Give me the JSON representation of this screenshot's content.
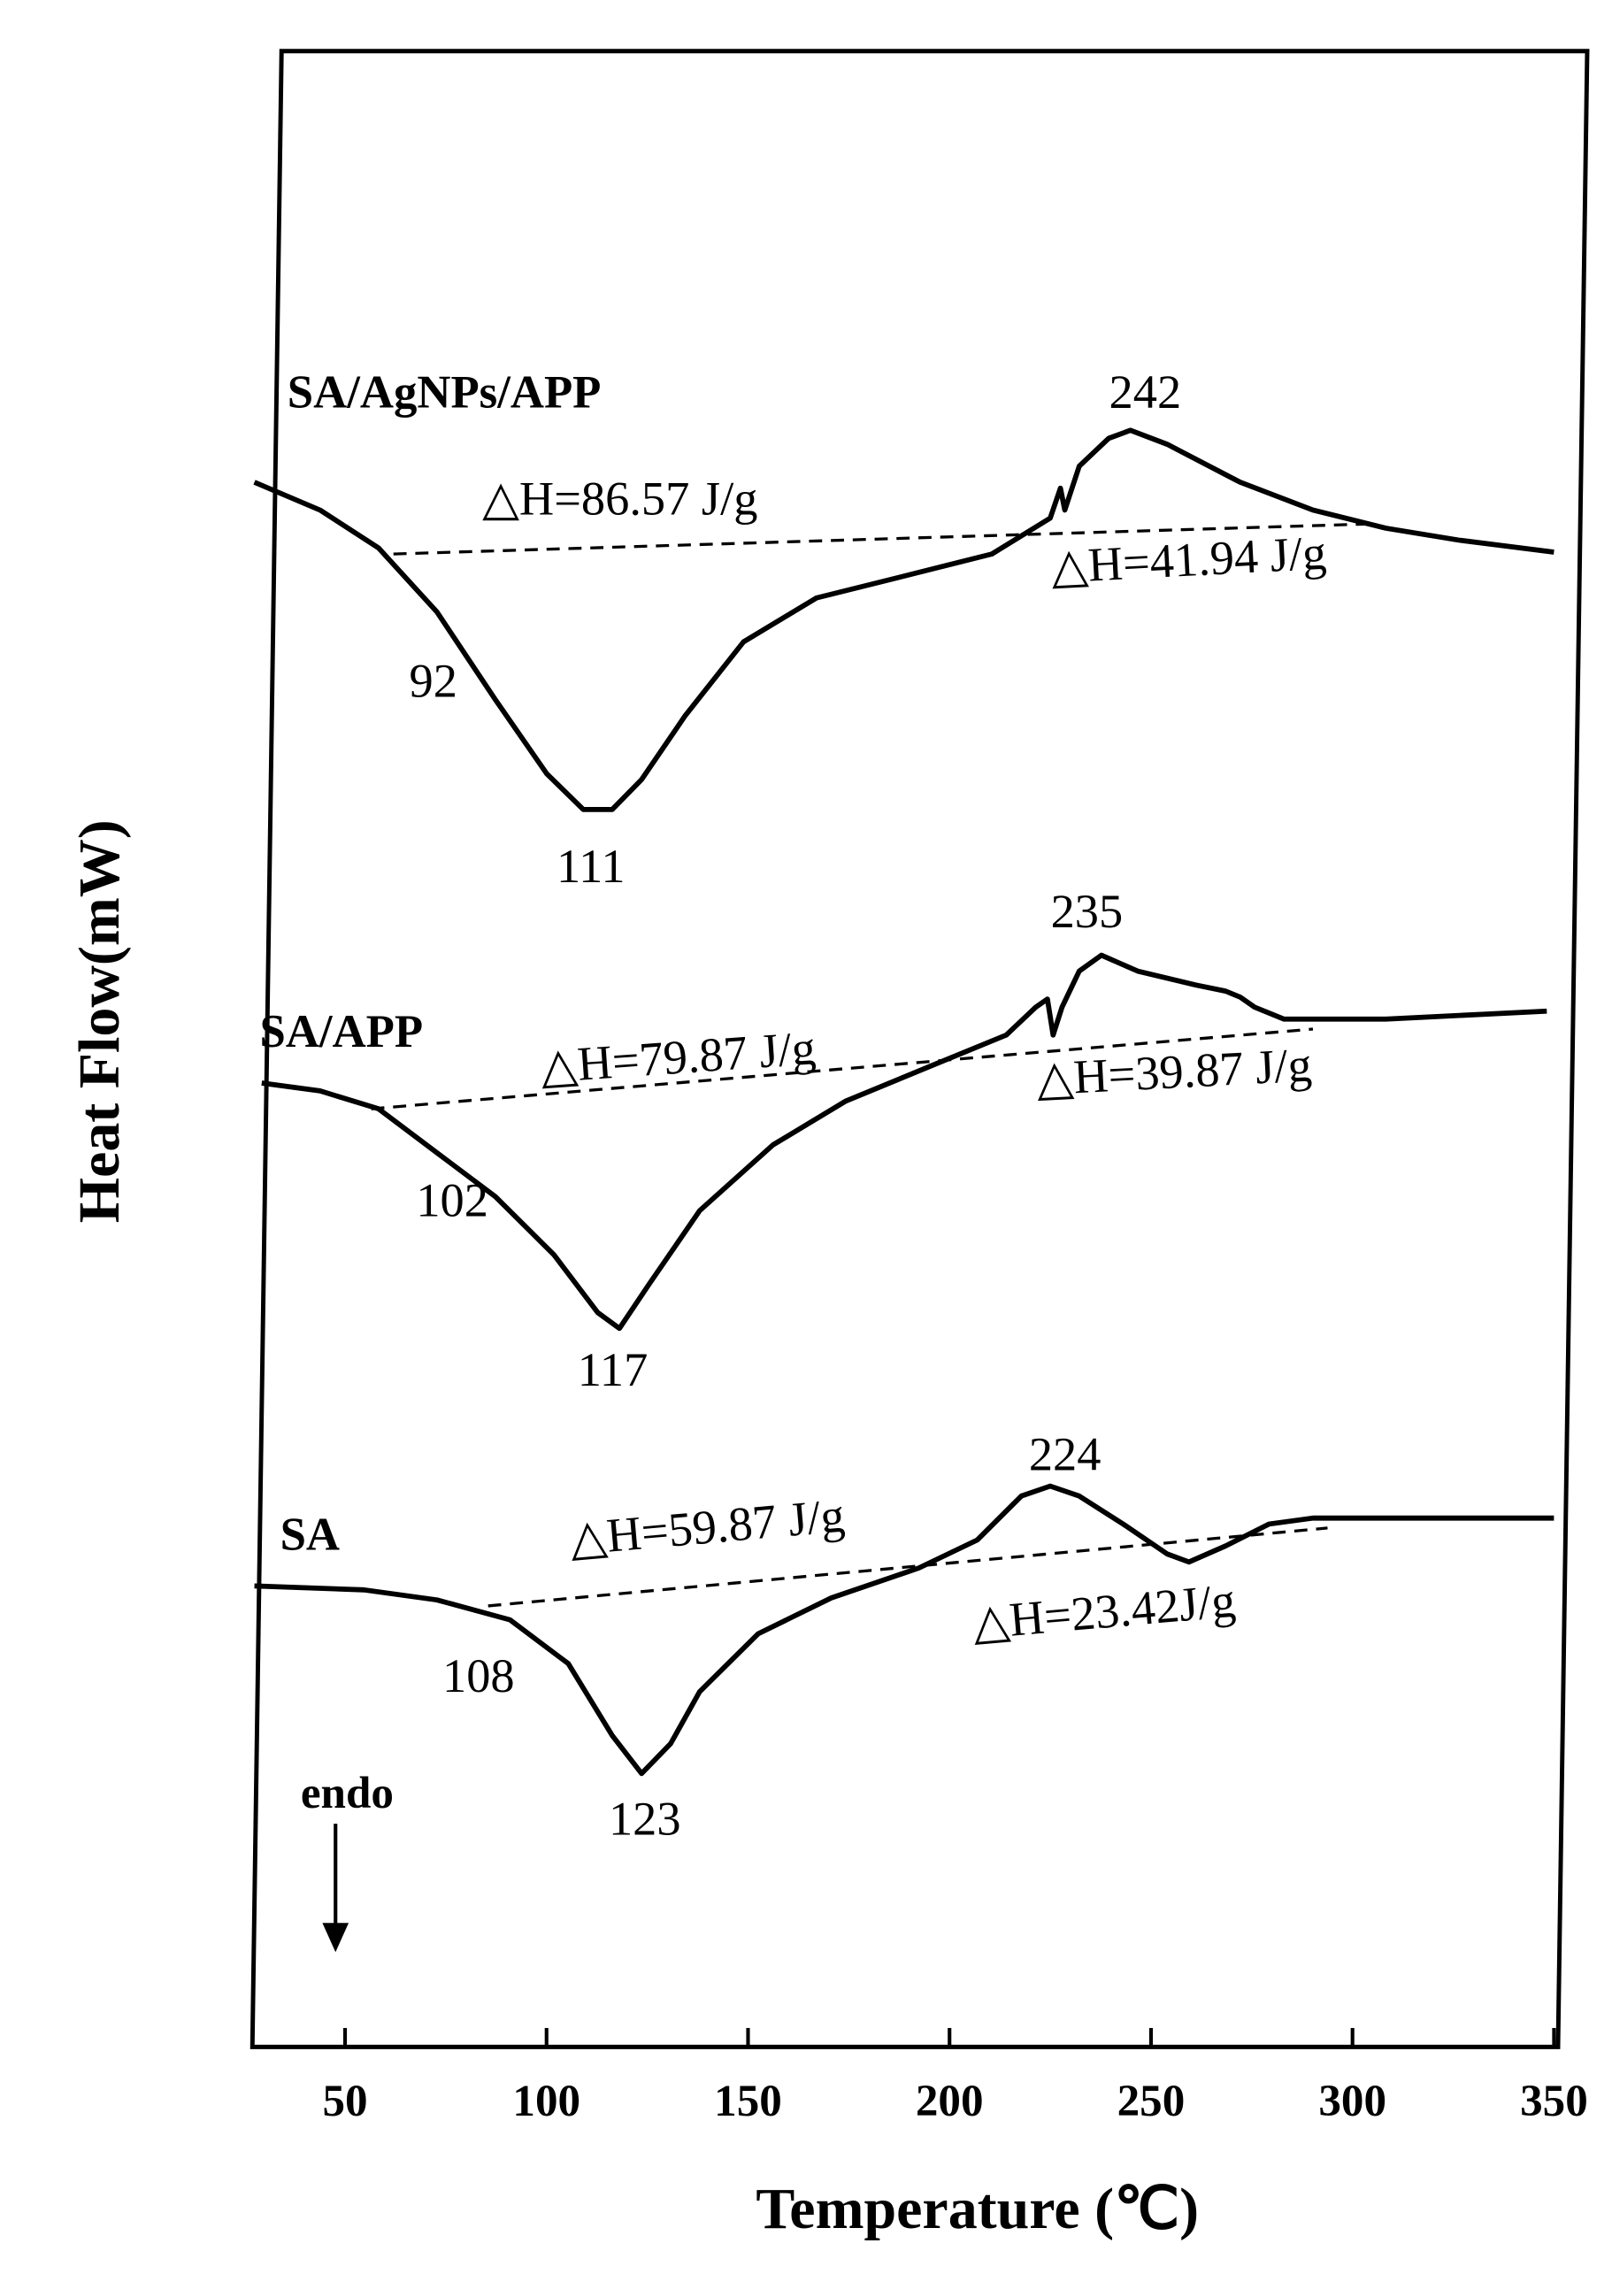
{
  "chart_data": {
    "type": "line",
    "x_label": "Temperature (℃)",
    "y_label": "Heat Flow(mW)",
    "annotation": "endo",
    "xlim": [
      27,
      351
    ],
    "xticks": [
      50,
      100,
      150,
      200,
      250,
      300,
      350
    ],
    "ylim": [
      0,
      100
    ],
    "series": [
      {
        "name": "SA/AgNPs/APP",
        "color": "#000000",
        "x": [
          27.5,
          43.8,
          58.3,
          72.8,
          87.3,
          100.0,
          109.1,
          116.3,
          123.6,
          134.4,
          148.9,
          167.0,
          188.8,
          210.5,
          225.0,
          227.5,
          228.6,
          232.2,
          239.5,
          244.9,
          254.0,
          272.1,
          290.2,
          308.3,
          326.4,
          350.0
        ],
        "values": [
          78.4,
          77.0,
          75.1,
          71.9,
          67.5,
          63.8,
          62.0,
          62.0,
          63.5,
          66.7,
          70.4,
          72.6,
          73.7,
          74.8,
          76.6,
          78.1,
          77.0,
          79.2,
          80.6,
          81.0,
          80.3,
          78.4,
          77.0,
          76.1,
          75.5,
          74.9
        ],
        "baseline": {
          "x": [
            62.0,
            302.9
          ],
          "y": [
            74.8,
            76.3
          ]
        },
        "peak_labels": [
          "92",
          "111",
          "242"
        ],
        "enthalpy_labels": [
          "△H=86.57 J/g",
          "△H=41.94 J/g"
        ]
      },
      {
        "name": "SA/APP",
        "color": "#000000",
        "x": [
          29.3,
          43.8,
          58.3,
          72.8,
          87.3,
          101.8,
          112.7,
          118.1,
          125.4,
          138.0,
          156.2,
          174.3,
          196.0,
          214.1,
          221.4,
          224.3,
          225.7,
          227.9,
          232.2,
          237.7,
          246.7,
          261.2,
          268.5,
          272.1,
          275.7,
          283.0,
          308.3,
          348.2
        ],
        "values": [
          48.3,
          47.9,
          47.0,
          44.8,
          42.6,
          39.7,
          36.8,
          36.0,
          38.2,
          41.9,
          45.2,
          47.4,
          49.2,
          50.7,
          52.1,
          52.5,
          50.7,
          52.1,
          53.9,
          54.7,
          53.9,
          53.2,
          52.9,
          52.6,
          52.1,
          51.5,
          51.5,
          51.9
        ],
        "baseline": {
          "x": [
            56.5,
            290.2
          ],
          "y": [
            47.0,
            51.0
          ]
        },
        "peak_labels": [
          "102",
          "117",
          "235"
        ],
        "enthalpy_labels": [
          "△H=79.87 J/g",
          "△H=39.87 J/g"
        ]
      },
      {
        "name": "SA",
        "color": "#000000",
        "x": [
          27.5,
          54.7,
          72.8,
          90.9,
          105.4,
          116.3,
          123.6,
          130.8,
          138.0,
          152.5,
          170.7,
          192.4,
          206.9,
          217.8,
          225.0,
          232.2,
          243.1,
          254.0,
          259.4,
          268.5,
          279.3,
          290.2,
          350.0
        ],
        "values": [
          23.1,
          22.9,
          22.4,
          21.4,
          19.2,
          15.6,
          13.7,
          15.2,
          17.8,
          20.7,
          22.5,
          24.0,
          25.4,
          27.6,
          28.1,
          27.6,
          26.2,
          24.7,
          24.3,
          25.1,
          26.2,
          26.5,
          26.5
        ],
        "baseline": {
          "x": [
            85.5,
            293.8
          ],
          "y": [
            22.1,
            26.0
          ]
        },
        "peak_labels": [
          "108",
          "123",
          "224"
        ],
        "enthalpy_labels": [
          "△H=59.87 J/g",
          "△H=23.42J/g"
        ]
      }
    ]
  }
}
